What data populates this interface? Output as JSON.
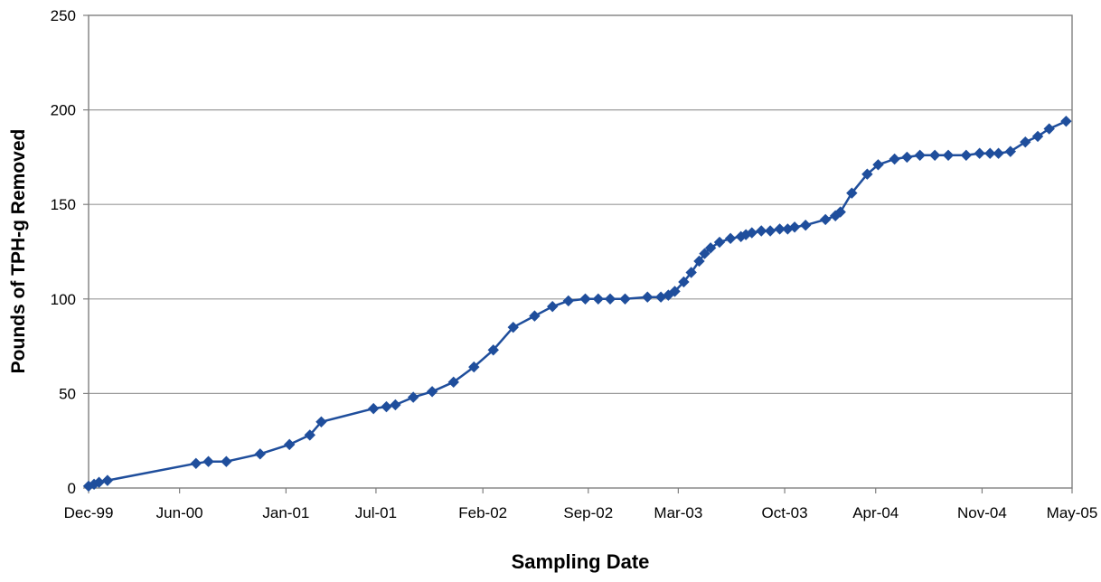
{
  "chart_data": {
    "type": "line",
    "title": "",
    "xlabel": "Sampling Date",
    "ylabel": "Pounds of TPH-g Removed",
    "ylim": [
      0,
      250
    ],
    "y_ticks": [
      0,
      50,
      100,
      150,
      200,
      250
    ],
    "y_tick_labels": [
      "0",
      "50",
      "100",
      "150",
      "200",
      "250"
    ],
    "x_range": [
      "1999-12-01",
      "2005-05-01"
    ],
    "x_ticks": [
      "1999-12-01",
      "2000-06-01",
      "2001-01-01",
      "2001-07-01",
      "2002-02-01",
      "2002-09-01",
      "2003-03-01",
      "2003-10-01",
      "2004-04-01",
      "2004-11-01",
      "2005-05-01"
    ],
    "x_tick_labels": [
      "Dec-99",
      "Jun-00",
      "Jan-01",
      "Jul-01",
      "Feb-02",
      "Sep-02",
      "Mar-03",
      "Oct-03",
      "Apr-04",
      "Nov-04",
      "May-05"
    ],
    "grid": true,
    "legend": "none",
    "colors": {
      "series": "#1f4e9c",
      "grid": "#9a9a9a",
      "axis": "#7f7f7f"
    },
    "series": [
      {
        "marker": "diamond",
        "x": [
          "1999-12-01",
          "1999-12-12",
          "1999-12-22",
          "2000-01-08",
          "2000-07-04",
          "2000-07-29",
          "2000-09-03",
          "2000-11-10",
          "2001-01-08",
          "2001-02-18",
          "2001-03-13",
          "2001-06-26",
          "2001-07-22",
          "2001-08-09",
          "2001-09-14",
          "2001-10-22",
          "2001-12-04",
          "2002-01-14",
          "2002-02-22",
          "2002-04-03",
          "2002-05-16",
          "2002-06-21",
          "2002-07-23",
          "2002-08-26",
          "2002-09-21",
          "2002-10-15",
          "2002-11-14",
          "2002-12-29",
          "2003-01-25",
          "2003-02-09",
          "2003-02-22",
          "2003-03-12",
          "2003-03-27",
          "2003-04-12",
          "2003-04-23",
          "2003-05-05",
          "2003-05-23",
          "2003-06-14",
          "2003-07-05",
          "2003-07-15",
          "2003-07-27",
          "2003-08-15",
          "2003-09-02",
          "2003-09-21",
          "2003-10-07",
          "2003-10-21",
          "2003-11-12",
          "2003-12-22",
          "2004-01-11",
          "2004-01-21",
          "2004-02-13",
          "2004-03-15",
          "2004-04-06",
          "2004-05-09",
          "2004-06-03",
          "2004-06-29",
          "2004-07-29",
          "2004-08-25",
          "2004-09-30",
          "2004-10-27",
          "2004-11-17",
          "2004-12-04",
          "2004-12-28",
          "2005-01-27",
          "2005-02-21",
          "2005-03-16",
          "2005-04-19"
        ],
        "y": [
          1,
          2,
          3,
          4,
          13,
          14,
          14,
          18,
          23,
          28,
          35,
          42,
          43,
          44,
          48,
          51,
          56,
          64,
          73,
          85,
          91,
          96,
          99,
          100,
          100,
          100,
          100,
          101,
          101,
          102,
          104,
          109,
          114,
          120,
          124,
          127,
          130,
          132,
          133,
          134,
          135,
          136,
          136,
          137,
          137,
          138,
          139,
          142,
          144,
          146,
          156,
          166,
          171,
          174,
          175,
          176,
          176,
          176,
          176,
          177,
          177,
          177,
          178,
          183,
          186,
          190,
          194
        ]
      }
    ]
  }
}
